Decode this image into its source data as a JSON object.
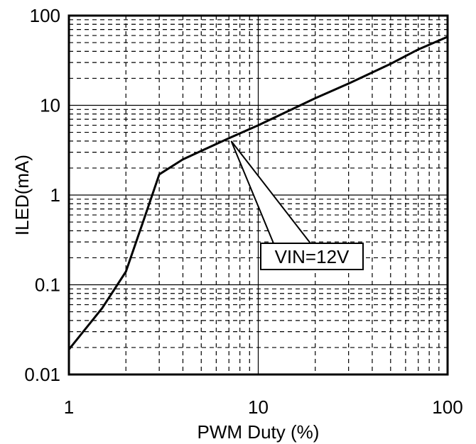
{
  "chart_data": {
    "type": "line",
    "xlabel": "PWM Duty (%)",
    "ylabel": "ILED(mA)",
    "x_scale": "log",
    "y_scale": "log",
    "xlim": [
      1,
      100
    ],
    "ylim": [
      0.01,
      100
    ],
    "x_ticks": [
      "1",
      "10",
      "100"
    ],
    "y_ticks": [
      "0.01",
      "0.1",
      "1",
      "10",
      "100"
    ],
    "grid": true,
    "series": [
      {
        "points": [
          {
            "x": 1,
            "y": 0.019
          },
          {
            "x": 1.5,
            "y": 0.055
          },
          {
            "x": 2,
            "y": 0.14
          },
          {
            "x": 2.5,
            "y": 0.55
          },
          {
            "x": 3,
            "y": 1.7
          },
          {
            "x": 4,
            "y": 2.5
          },
          {
            "x": 5,
            "y": 3.1
          },
          {
            "x": 7,
            "y": 4.3
          },
          {
            "x": 10,
            "y": 6
          },
          {
            "x": 20,
            "y": 12
          },
          {
            "x": 30,
            "y": 17.5
          },
          {
            "x": 50,
            "y": 29
          },
          {
            "x": 70,
            "y": 42
          },
          {
            "x": 100,
            "y": 58
          }
        ]
      }
    ],
    "annotation": {
      "text": "VIN=12V",
      "x": 7.2,
      "y": 4.3
    }
  }
}
